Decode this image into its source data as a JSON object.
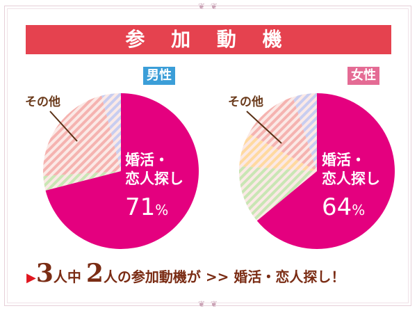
{
  "title": "参 加 動 機",
  "ornament": "❦ ❦",
  "colors": {
    "main": "#e4007f",
    "other": [
      "#c9e6b4",
      "#ffd9a0",
      "#f5b3b0",
      "#c8cdf0"
    ],
    "title_bar": "#e5424f"
  },
  "chart_data": [
    {
      "type": "pie",
      "title": "男性",
      "slices": [
        {
          "label": "婚活・恋人探し",
          "value": 71
        },
        {
          "label": "その他-green",
          "value": 3
        },
        {
          "label": "その他-salmon",
          "value": 22
        },
        {
          "label": "その他-blue",
          "value": 4
        }
      ],
      "main_label_lines": [
        "婚活・",
        "恋人探し"
      ],
      "main_pct": "71",
      "pct_unit": "%",
      "other_label": "その他"
    },
    {
      "type": "pie",
      "title": "女性",
      "slices": [
        {
          "label": "婚活・恋人探し",
          "value": 64
        },
        {
          "label": "その他-green",
          "value": 12
        },
        {
          "label": "その他-yellow",
          "value": 7
        },
        {
          "label": "その他-salmon",
          "value": 12
        },
        {
          "label": "その他-blue",
          "value": 5
        }
      ],
      "main_label_lines": [
        "婚活・",
        "恋人探し"
      ],
      "main_pct": "64",
      "pct_unit": "%",
      "other_label": "その他"
    }
  ],
  "summary": {
    "arrow": "▶",
    "n1": "3",
    "t1": "人中",
    "n2": "2",
    "t2": "人の参加動機が >> 婚活・恋人探し！"
  }
}
